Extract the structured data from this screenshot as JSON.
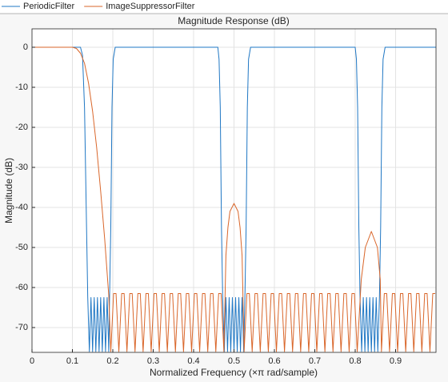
{
  "chart_data": {
    "type": "line",
    "title": "Magnitude Response (dB)",
    "x_label": "Normalized Frequency (×π rad/sample)",
    "y_label": "Magnitude (dB)",
    "xlim": [
      0,
      1
    ],
    "ylim": [
      -76.2,
      4.6
    ],
    "xticks": [
      0,
      0.1,
      0.2,
      0.3,
      0.4,
      0.5,
      0.6,
      0.7,
      0.8,
      0.9
    ],
    "yticks": [
      0,
      -10,
      -20,
      -30,
      -40,
      -50,
      -60,
      -70
    ],
    "grid": true,
    "legend": "top",
    "series": [
      {
        "name": "PeriodicFilter",
        "color": "#1f77c4",
        "x": [
          0,
          0.12,
          0.125,
          0.13,
          0.135,
          0.138,
          0.142,
          0.146,
          0.15,
          0.154,
          0.158,
          0.162,
          0.166,
          0.17,
          0.174,
          0.178,
          0.182,
          0.186,
          0.19,
          0.192,
          0.195,
          0.198,
          0.201,
          0.206,
          0.46,
          0.463,
          0.466,
          0.469,
          0.472,
          0.476,
          0.48,
          0.484,
          0.488,
          0.492,
          0.496,
          0.5,
          0.504,
          0.508,
          0.512,
          0.516,
          0.52,
          0.524,
          0.527,
          0.53,
          0.533,
          0.536,
          0.541,
          0.8,
          0.803,
          0.806,
          0.809,
          0.812,
          0.816,
          0.82,
          0.824,
          0.828,
          0.832,
          0.836,
          0.84,
          0.844,
          0.848,
          0.852,
          0.856,
          0.86,
          0.863,
          0.866,
          0.869,
          0.874,
          1
        ],
        "values": [
          0,
          0,
          -2,
          -15,
          -45,
          -62.5,
          -76,
          -62.5,
          -76,
          -62.5,
          -76,
          -62.5,
          -76,
          -62.5,
          -76,
          -62.5,
          -76,
          -62.5,
          -76,
          -62.5,
          -45,
          -15,
          -3,
          0,
          0,
          -3,
          -15,
          -45,
          -62.5,
          -76,
          -62.5,
          -76,
          -62.5,
          -76,
          -62.5,
          -76,
          -62.5,
          -76,
          -62.5,
          -76,
          -62.5,
          -76,
          -62.5,
          -45,
          -15,
          -3,
          0,
          0,
          -3,
          -15,
          -45,
          -62.5,
          -76,
          -62.5,
          -76,
          -62.5,
          -76,
          -62.5,
          -76,
          -62.5,
          -76,
          -62.5,
          -76,
          -62.5,
          -45,
          -15,
          -3,
          0,
          0
        ]
      },
      {
        "name": "ImageSuppressorFilter",
        "color": "#d9662a",
        "x": [
          0,
          0.05,
          0.1,
          0.11,
          0.12,
          0.13,
          0.14,
          0.15,
          0.16,
          0.17,
          0.18,
          0.19,
          0.195,
          0.202,
          0.208,
          0.215,
          0.222,
          0.228,
          0.235,
          0.242,
          0.248,
          0.255,
          0.262,
          0.268,
          0.275,
          0.282,
          0.288,
          0.295,
          0.302,
          0.308,
          0.315,
          0.322,
          0.328,
          0.335,
          0.342,
          0.348,
          0.355,
          0.362,
          0.368,
          0.375,
          0.382,
          0.388,
          0.395,
          0.402,
          0.408,
          0.415,
          0.422,
          0.428,
          0.435,
          0.442,
          0.448,
          0.455,
          0.462,
          0.468,
          0.475,
          0.48,
          0.485,
          0.49,
          0.5,
          0.51,
          0.515,
          0.52,
          0.525,
          0.532,
          0.538,
          0.545,
          0.552,
          0.558,
          0.565,
          0.572,
          0.578,
          0.585,
          0.592,
          0.598,
          0.605,
          0.612,
          0.618,
          0.625,
          0.632,
          0.638,
          0.645,
          0.652,
          0.658,
          0.665,
          0.672,
          0.678,
          0.685,
          0.692,
          0.698,
          0.705,
          0.712,
          0.718,
          0.725,
          0.732,
          0.738,
          0.745,
          0.752,
          0.758,
          0.765,
          0.772,
          0.778,
          0.785,
          0.792,
          0.798,
          0.805,
          0.815,
          0.825,
          0.84,
          0.855,
          0.862,
          0.865,
          0.872,
          0.878,
          0.885,
          0.892,
          0.898,
          0.905,
          0.912,
          0.918,
          0.925,
          0.932,
          0.938,
          0.945,
          0.952,
          0.958,
          0.965,
          0.972,
          0.978,
          0.985,
          0.992,
          0.998
        ],
        "values": [
          0,
          0,
          0,
          -0.3,
          -1.5,
          -4,
          -9,
          -16,
          -25,
          -36,
          -48,
          -62,
          -76,
          -61.5,
          -61.5,
          -76,
          -61.5,
          -61.5,
          -76,
          -61.5,
          -61.5,
          -76,
          -61.5,
          -61.5,
          -76,
          -61.5,
          -61.5,
          -76,
          -61.5,
          -61.5,
          -76,
          -61.5,
          -61.5,
          -76,
          -61.5,
          -61.5,
          -76,
          -61.5,
          -61.5,
          -76,
          -61.5,
          -61.5,
          -76,
          -61.5,
          -61.5,
          -76,
          -61.5,
          -61.5,
          -76,
          -61.5,
          -61.5,
          -76,
          -61.5,
          -61.5,
          -76,
          -52,
          -45,
          -41,
          -39,
          -41,
          -45,
          -52,
          -76,
          -61.5,
          -61.5,
          -76,
          -61.5,
          -61.5,
          -76,
          -61.5,
          -61.5,
          -76,
          -61.5,
          -61.5,
          -76,
          -61.5,
          -61.5,
          -76,
          -61.5,
          -61.5,
          -76,
          -61.5,
          -61.5,
          -76,
          -61.5,
          -61.5,
          -76,
          -61.5,
          -61.5,
          -76,
          -61.5,
          -61.5,
          -76,
          -61.5,
          -61.5,
          -76,
          -61.5,
          -61.5,
          -76,
          -61.5,
          -61.5,
          -76,
          -61.5,
          -61.5,
          -76,
          -58,
          -50,
          -46,
          -50,
          -58,
          -76,
          -61.5,
          -61.5,
          -76,
          -61.5,
          -61.5,
          -76,
          -61.5,
          -61.5,
          -76,
          -61.5,
          -61.5,
          -76,
          -61.5,
          -61.5,
          -76,
          -61.5,
          -61.5,
          -76,
          -61.5,
          -61.5
        ]
      }
    ]
  }
}
